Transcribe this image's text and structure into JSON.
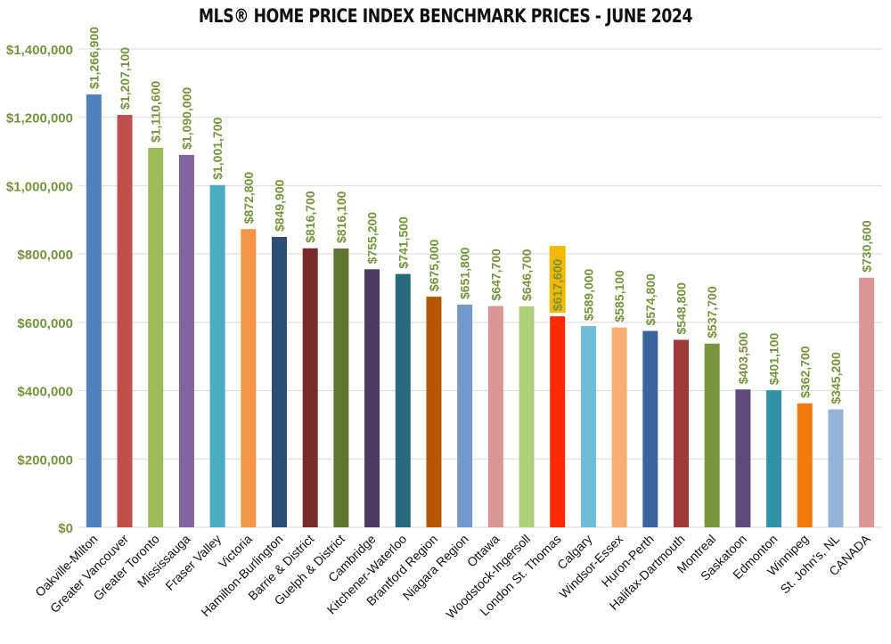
{
  "chart_data": {
    "type": "bar",
    "title": "MLS® HOME PRICE INDEX BENCHMARK PRICES - JUNE 2024",
    "xlabel": "",
    "ylabel": "",
    "ylim": [
      0,
      1400000
    ],
    "yticks": [
      0,
      200000,
      400000,
      600000,
      800000,
      1000000,
      1200000,
      1400000
    ],
    "ytick_labels": [
      "$0",
      "$200,000",
      "$400,000",
      "$600,000",
      "$800,000",
      "$1,000,000",
      "$1,200,000",
      "$1,400,000"
    ],
    "grid": true,
    "legend": "none",
    "categories": [
      "Oakville-Milton",
      "Greater Vancouver",
      "Greater Toronto",
      "Mississauga",
      "Fraser Valley",
      "Victoria",
      "Hamilton-Burlington",
      "Barrie & District",
      "Guelph & District",
      "Cambridge",
      "Kitchener-Waterloo",
      "Brantford Region",
      "Niagara Region",
      "Ottawa",
      "Woodstock-Ingersoll",
      "London St. Thomas",
      "Calgary",
      "Windsor-Essex",
      "Huron-Perth",
      "Halifax-Dartmouth",
      "Montreal",
      "Saskatoon",
      "Edmonton",
      "Winnipeg",
      "St. John's, NL",
      "CANADA"
    ],
    "values": [
      1266900,
      1207100,
      1110600,
      1090000,
      1001700,
      872800,
      849900,
      816700,
      816100,
      755200,
      741500,
      675000,
      651800,
      647700,
      646700,
      617600,
      589000,
      585100,
      574800,
      548800,
      537700,
      403500,
      401100,
      362700,
      345200,
      730600
    ],
    "data_labels": [
      "$1,266,900",
      "$1,207,100",
      "$1,110,600",
      "$1,090,000",
      "$1,001,700",
      "$872,800",
      "$849,900",
      "$816,700",
      "$816,100",
      "$755,200",
      "$741,500",
      "$675,000",
      "$651,800",
      "$647,700",
      "$646,700",
      "$617,600",
      "$589,000",
      "$585,100",
      "$574,800",
      "$548,800",
      "$537,700",
      "$403,500",
      "$401,100",
      "$362,700",
      "$345,200",
      "$730,600"
    ],
    "bar_colors": [
      "#4F81BD",
      "#C0504D",
      "#9BBB59",
      "#8064A2",
      "#4BACC6",
      "#F79646",
      "#2C4D75",
      "#772C2A",
      "#5F7530",
      "#4D3B62",
      "#276A7C",
      "#B65708",
      "#729ACA",
      "#D99694",
      "#ADCF7A",
      "#FF2A00",
      "#6FBDD6",
      "#F9AE74",
      "#3A64A0",
      "#A0393A",
      "#77963C",
      "#604A7B",
      "#3492A8",
      "#F47A0E",
      "#95B3D7",
      "#D99694"
    ],
    "highlight_index": 15,
    "highlight_color": "#F5B800",
    "label_color": "#77933C",
    "axis_label_color": "#77933C"
  }
}
